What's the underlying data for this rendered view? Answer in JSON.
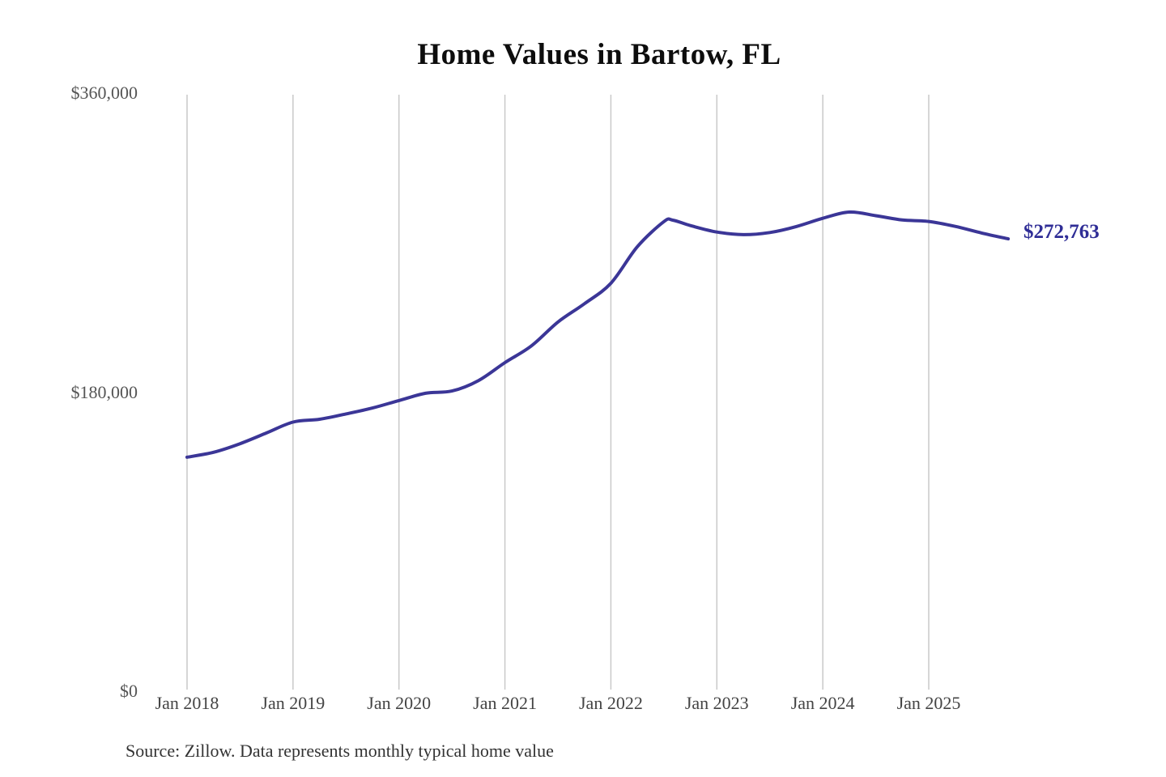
{
  "title": "Home Values in Bartow, FL",
  "end_label": "$272,763",
  "source_note": "Source: Zillow. Data represents monthly typical home value",
  "colors": {
    "line": "#3b3697",
    "end_label": "#2f2d96",
    "gridline": "#c9c9c9",
    "y_axis_text": "#555555",
    "x_axis_text": "#444444",
    "title_text": "#0d0d0d",
    "source_text": "#333333",
    "background": "#ffffff"
  },
  "chart_data": {
    "type": "line",
    "title": "Home Values in Bartow, FL",
    "xlabel": "",
    "ylabel": "",
    "ylim": [
      0,
      360000
    ],
    "grid": "vertical-only",
    "legend": "none",
    "x_tick_labels": [
      "Jan 2018",
      "Jan 2019",
      "Jan 2020",
      "Jan 2021",
      "Jan 2022",
      "Jan 2023",
      "Jan 2024",
      "Jan 2025"
    ],
    "y_tick_labels": [
      "$0",
      "$180,000",
      "$360,000"
    ],
    "y_tick_values": [
      0,
      180000,
      360000
    ],
    "end_value": 272763,
    "end_value_label": "$272,763",
    "series": [
      {
        "name": "Monthly typical home value",
        "points": [
          {
            "date": "2018-01",
            "value": 140600
          },
          {
            "date": "2018-04",
            "value": 143600
          },
          {
            "date": "2018-07",
            "value": 148800
          },
          {
            "date": "2018-10",
            "value": 155300
          },
          {
            "date": "2019-01",
            "value": 161900
          },
          {
            "date": "2019-04",
            "value": 163600
          },
          {
            "date": "2019-07",
            "value": 166800
          },
          {
            "date": "2019-10",
            "value": 170400
          },
          {
            "date": "2020-01",
            "value": 174900
          },
          {
            "date": "2020-04",
            "value": 179300
          },
          {
            "date": "2020-07",
            "value": 180700
          },
          {
            "date": "2020-10",
            "value": 187000
          },
          {
            "date": "2021-01",
            "value": 197900
          },
          {
            "date": "2021-04",
            "value": 208000
          },
          {
            "date": "2021-07",
            "value": 222400
          },
          {
            "date": "2021-10",
            "value": 233500
          },
          {
            "date": "2022-01",
            "value": 245900
          },
          {
            "date": "2022-04",
            "value": 268000
          },
          {
            "date": "2022-07",
            "value": 283200
          },
          {
            "date": "2022-08",
            "value": 284100
          },
          {
            "date": "2022-10",
            "value": 280800
          },
          {
            "date": "2023-01",
            "value": 276900
          },
          {
            "date": "2023-04",
            "value": 275300
          },
          {
            "date": "2023-07",
            "value": 276600
          },
          {
            "date": "2023-10",
            "value": 280200
          },
          {
            "date": "2024-01",
            "value": 285200
          },
          {
            "date": "2024-04",
            "value": 289000
          },
          {
            "date": "2024-07",
            "value": 286800
          },
          {
            "date": "2024-10",
            "value": 284200
          },
          {
            "date": "2025-01",
            "value": 283300
          },
          {
            "date": "2025-04",
            "value": 280300
          },
          {
            "date": "2025-07",
            "value": 276300
          },
          {
            "date": "2025-10",
            "value": 272763
          }
        ]
      }
    ]
  }
}
